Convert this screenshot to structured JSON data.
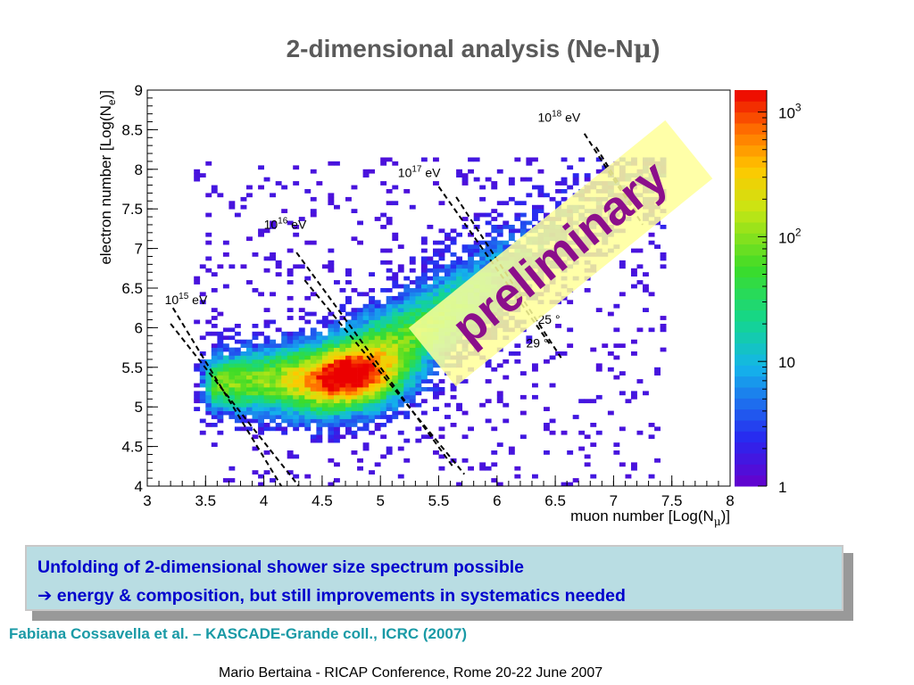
{
  "slide": {
    "title_prefix": "2-dimensional analysis (Ne-N",
    "title_mu": "μ",
    "title_suffix": ")",
    "callout_line1": "Unfolding of 2-dimensional shower size spectrum possible",
    "callout_arrow": "➔",
    "callout_line2": "energy & composition, but still improvements in systematics needed",
    "citation": "Fabiana Cossavella et al. – KASCADE-Grande coll., ICRC (2007)",
    "footer": "Mario Bertaina - RICAP Conference, Rome 20-22 June 2007"
  },
  "chart_data": {
    "type": "heatmap",
    "xlabel_main": "muon number [Log(N",
    "xlabel_sub": "μ",
    "xlabel_end": ")]",
    "ylabel_main": "electron number [Log(N",
    "ylabel_sub": "e",
    "ylabel_end": ")]",
    "xlim": [
      3,
      8
    ],
    "ylim": [
      4,
      9
    ],
    "xticks": [
      "3",
      "3.5",
      "4",
      "4.5",
      "5",
      "5.5",
      "6",
      "6.5",
      "7",
      "7.5",
      "8"
    ],
    "yticks": [
      "4",
      "4.5",
      "5",
      "5.5",
      "6",
      "6.5",
      "7",
      "7.5",
      "8",
      "8.5",
      "9"
    ],
    "colorbar": {
      "scale": "log",
      "min": 1,
      "max": 1500,
      "labels": [
        {
          "base": "1",
          "exp": "",
          "value": 1
        },
        {
          "base": "10",
          "exp": "",
          "value": 10
        },
        {
          "base": "10",
          "exp": "2",
          "value": 100
        },
        {
          "base": "10",
          "exp": "3",
          "value": 1000
        }
      ]
    },
    "density": {
      "ridge": [
        [
          3.5,
          5.3
        ],
        [
          4.5,
          5.35
        ],
        [
          5.2,
          5.8
        ],
        [
          6.0,
          6.65
        ],
        [
          7.0,
          7.6
        ],
        [
          7.2,
          7.9
        ]
      ],
      "peak": [
        4.75,
        5.35
      ],
      "peak_counts": 1500
    },
    "energy_lines": [
      {
        "label_base": "10",
        "label_exp": "15",
        "label_unit": " eV",
        "label_pos": [
          3.15,
          6.3
        ],
        "pair": [
          [
            [
              3.22,
              6.25
            ],
            [
              4.15,
              4.0
            ]
          ],
          [
            [
              3.2,
              6.05
            ],
            [
              4.3,
              4.0
            ]
          ]
        ]
      },
      {
        "label_base": "10",
        "label_exp": "16",
        "label_unit": " eV",
        "label_pos": [
          4.0,
          7.25
        ],
        "pair": [
          [
            [
              4.28,
              6.95
            ],
            [
              5.62,
              4.25
            ]
          ],
          [
            [
              4.35,
              6.6
            ],
            [
              5.72,
              4.15
            ]
          ]
        ]
      },
      {
        "label_base": "10",
        "label_exp": "17",
        "label_unit": " eV",
        "label_pos": [
          5.15,
          7.9
        ],
        "pair": [
          [
            [
              5.5,
              7.78
            ],
            [
              6.45,
              5.8
            ]
          ],
          [
            [
              5.65,
              7.65
            ],
            [
              6.55,
              5.62
            ]
          ]
        ]
      },
      {
        "label_base": "10",
        "label_exp": "18",
        "label_unit": " eV",
        "label_pos": [
          6.35,
          8.6
        ],
        "pair": [
          [
            [
              6.75,
              8.45
            ],
            [
              7.25,
              7.3
            ]
          ],
          [
            [
              6.85,
              8.28
            ],
            [
              7.2,
              7.45
            ]
          ]
        ]
      }
    ],
    "angle_labels": [
      {
        "text": "25 °",
        "pos": [
          6.35,
          6.05
        ]
      },
      {
        "text": "29 °",
        "pos": [
          6.25,
          5.75
        ]
      }
    ],
    "watermark": {
      "text": "preliminary",
      "color": "#8b0f8b",
      "band_color": "#ffff99"
    }
  }
}
